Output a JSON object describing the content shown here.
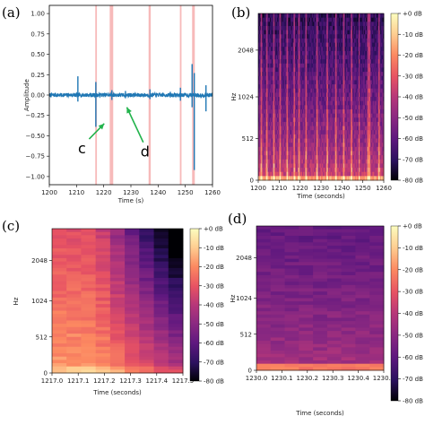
{
  "chart_data": [
    {
      "panel": "(a)",
      "type": "line",
      "xlabel": "Time (s)",
      "ylabel": "Amplitude",
      "xlim": [
        1200,
        1260
      ],
      "ylim": [
        -1.1,
        1.1
      ],
      "xticks": [
        "1200",
        "1210",
        "1220",
        "1230",
        "1240",
        "1250",
        "1260"
      ],
      "yticks": [
        "−1.00",
        "−0.75",
        "−0.50",
        "−0.25",
        "0.00",
        "0.25",
        "0.50",
        "0.75",
        "1.00"
      ],
      "line_color": "#1f77b4",
      "highlight_color": "#f4a3a3",
      "highlight_intervals": [
        [
          1216.9,
          1217.5
        ],
        [
          1222.2,
          1223.5
        ],
        [
          1236.5,
          1237.3
        ],
        [
          1248.0,
          1248.6
        ],
        [
          1252.5,
          1253.5
        ]
      ],
      "spikes": [
        {
          "x": 1210.5,
          "up": 0.23,
          "down": -0.08
        },
        {
          "x": 1217.1,
          "up": 0.16,
          "down": -0.39
        },
        {
          "x": 1223.0,
          "up": 0.06,
          "down": -0.06
        },
        {
          "x": 1228.0,
          "up": 0.05,
          "down": -0.04
        },
        {
          "x": 1237.0,
          "up": 0.07,
          "down": -0.05
        },
        {
          "x": 1244.5,
          "up": 0.04,
          "down": -0.03
        },
        {
          "x": 1248.2,
          "up": 0.09,
          "down": -0.07
        },
        {
          "x": 1252.5,
          "up": 0.38,
          "down": -0.15
        },
        {
          "x": 1253.3,
          "up": 0.27,
          "down": -0.92
        },
        {
          "x": 1257.6,
          "up": 0.12,
          "down": -0.2
        }
      ],
      "annotations": [
        {
          "text": "c",
          "x": 1212.0,
          "y": -0.65,
          "arrow_to": [
            1220.2,
            -0.35
          ]
        },
        {
          "text": "d",
          "x": 1235.2,
          "y": -0.69,
          "arrow_to": [
            1228.5,
            -0.15
          ]
        }
      ]
    },
    {
      "panel": "(b)",
      "type": "heatmap",
      "xlabel": "Time (seconds)",
      "ylabel": "Hz",
      "xlim": [
        1200,
        1260
      ],
      "xticks": [
        "1200",
        "1210",
        "1220",
        "1230",
        "1240",
        "1250",
        "1260"
      ],
      "yticks": [
        "0",
        "512",
        "1024",
        "2048"
      ],
      "colorbar": [
        "+0 dB",
        "-10 dB",
        "-20 dB",
        "-30 dB",
        "-40 dB",
        "-50 dB",
        "-60 dB",
        "-70 dB",
        "-80 dB"
      ],
      "vertical_events": [
        1201.5,
        1204,
        1207.5,
        1210.5,
        1214,
        1217.1,
        1219.5,
        1223,
        1228,
        1233,
        1237,
        1241,
        1244.5,
        1248.2,
        1252.5,
        1253.3,
        1257.6
      ]
    },
    {
      "panel": "(c)",
      "type": "heatmap",
      "xlabel": "Time (seconds)",
      "ylabel": "Hz",
      "xlim": [
        1217.0,
        1217.5
      ],
      "xticks": [
        "1217.0",
        "1217.1",
        "1217.2",
        "1217.3",
        "1217.4",
        "1217.5"
      ],
      "yticks": [
        "0",
        "512",
        "1024",
        "2048"
      ],
      "colorbar": [
        "+0 dB",
        "-10 dB",
        "-20 dB",
        "-30 dB",
        "-40 dB",
        "-50 dB",
        "-60 dB",
        "-70 dB",
        "-80 dB"
      ]
    },
    {
      "panel": "(d)",
      "type": "heatmap",
      "xlabel": "Time (seconds)",
      "ylabel": "Hz",
      "xlim": [
        1230.0,
        1230.5
      ],
      "xticks": [
        "1230.0",
        "1230.1",
        "1230.2",
        "1230.3",
        "1230.4",
        "1230.5"
      ],
      "yticks": [
        "0",
        "512",
        "1024",
        "2048"
      ],
      "colorbar": [
        "+0 dB",
        "-10 dB",
        "-20 dB",
        "-30 dB",
        "-40 dB",
        "-50 dB",
        "-60 dB",
        "-70 dB",
        "-80 dB"
      ]
    }
  ]
}
